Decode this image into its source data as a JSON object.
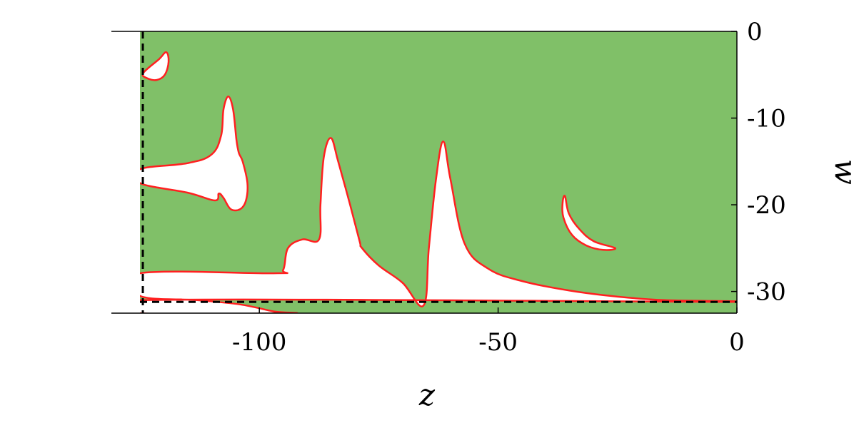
{
  "chart_data": {
    "type": "area",
    "xlabel": "z",
    "ylabel": "w",
    "xlim": [
      -125,
      0
    ],
    "ylim": [
      -32.5,
      0
    ],
    "x_ticks": [
      {
        "value": -100,
        "label": "-100"
      },
      {
        "value": -50,
        "label": "-50"
      },
      {
        "value": 0,
        "label": "0"
      }
    ],
    "y_ticks": [
      {
        "value": 0,
        "label": "0"
      },
      {
        "value": -10,
        "label": "-10"
      },
      {
        "value": -20,
        "label": "-20"
      },
      {
        "value": -30,
        "label": "-30"
      }
    ],
    "colors": {
      "fill": "#80c068",
      "boundary": "#ff2020",
      "reference_line": "#000000",
      "hole": "#ffffff"
    },
    "reference_lines": [
      {
        "orientation": "vertical",
        "x": -124.4,
        "style": "dashed"
      },
      {
        "orientation": "horizontal",
        "y": -31.2,
        "style": "dashed"
      }
    ],
    "regions": [
      {
        "role": "filled",
        "points": [
          [
            -125,
            0
          ],
          [
            0,
            0
          ],
          [
            0,
            -32.5
          ],
          [
            -125,
            -32.5
          ]
        ]
      },
      {
        "role": "unfilled",
        "points": [
          [
            -125,
            -31.0
          ],
          [
            0,
            -31.2
          ],
          [
            -15,
            -31.0
          ],
          [
            -25,
            -30.6
          ],
          [
            -35,
            -29.9
          ],
          [
            -45,
            -28.8
          ],
          [
            -52,
            -27.4
          ],
          [
            -57,
            -24.5
          ],
          [
            -60,
            -17.0
          ],
          [
            -61.5,
            -12.7
          ],
          [
            -63,
            -17.0
          ],
          [
            -64.5,
            -25.0
          ],
          [
            -65.6,
            -31.6
          ],
          [
            -70,
            -29.0
          ],
          [
            -75,
            -27.0
          ],
          [
            -78.5,
            -25.0
          ],
          [
            -79,
            -24.2
          ],
          [
            -81,
            -20.0
          ],
          [
            -83.5,
            -15.0
          ],
          [
            -85,
            -12.3
          ],
          [
            -86.5,
            -14.5
          ],
          [
            -87.2,
            -20.0
          ],
          [
            -87.5,
            -24.0
          ],
          [
            -91,
            -24.0
          ],
          [
            -94,
            -25.0
          ],
          [
            -95,
            -27.5
          ],
          [
            -97,
            -27.9
          ],
          [
            -125,
            -27.9
          ],
          [
            -125,
            -30.5
          ],
          [
            -113,
            -31.0
          ],
          [
            -104,
            -31.5
          ],
          [
            -97,
            -32.3
          ],
          [
            -94,
            -32.5
          ],
          [
            -125,
            -32.5
          ]
        ]
      },
      {
        "role": "unfilled",
        "points": [
          [
            -125,
            -15.9
          ],
          [
            -115,
            -15.2
          ],
          [
            -110,
            -14.2
          ],
          [
            -108,
            -12.0
          ],
          [
            -107.5,
            -9.0
          ],
          [
            -106.5,
            -7.5
          ],
          [
            -105.5,
            -9.0
          ],
          [
            -104.8,
            -12.5
          ],
          [
            -104.3,
            -14.0
          ],
          [
            -103.5,
            -15.0
          ],
          [
            -102.5,
            -17.5
          ],
          [
            -102.8,
            -19.5
          ],
          [
            -104,
            -20.5
          ],
          [
            -106,
            -20.5
          ],
          [
            -107.5,
            -19.2
          ],
          [
            -108.5,
            -18.7
          ],
          [
            -109.3,
            -19.5
          ],
          [
            -115,
            -18.6
          ],
          [
            -125,
            -17.5
          ]
        ]
      },
      {
        "role": "unfilled",
        "points": [
          [
            -124.3,
            -4.8
          ],
          [
            -121,
            -3.2
          ],
          [
            -119.5,
            -2.4
          ],
          [
            -119,
            -3.5
          ],
          [
            -119.8,
            -5.0
          ],
          [
            -121.5,
            -5.6
          ],
          [
            -123.5,
            -5.4
          ]
        ]
      },
      {
        "role": "unfilled",
        "points": [
          [
            -36,
            -19.0
          ],
          [
            -35.2,
            -21.0
          ],
          [
            -33,
            -22.8
          ],
          [
            -30,
            -24.2
          ],
          [
            -25.5,
            -25.0
          ],
          [
            -28,
            -25.2
          ],
          [
            -31.5,
            -24.7
          ],
          [
            -34.5,
            -23.5
          ],
          [
            -36.3,
            -21.5
          ],
          [
            -36.5,
            -19.8
          ]
        ]
      }
    ]
  }
}
